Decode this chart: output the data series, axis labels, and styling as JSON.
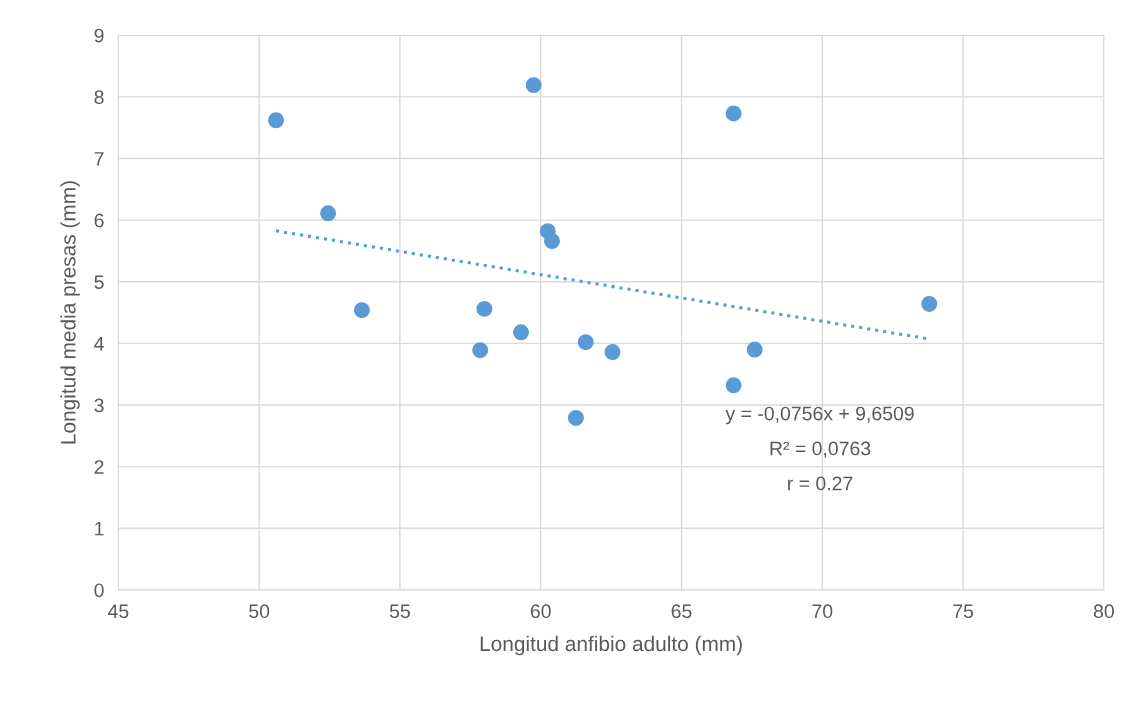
{
  "chart_data": {
    "type": "scatter",
    "xlabel": "Longitud anfibio adulto (mm)",
    "ylabel": "Longitud media presas (mm)",
    "xlim": [
      45,
      80
    ],
    "xticks": [
      45,
      50,
      55,
      60,
      65,
      70,
      75,
      80
    ],
    "ylim": [
      0,
      9
    ],
    "yticks": [
      0,
      1,
      2,
      3,
      4,
      5,
      6,
      7,
      8,
      9
    ],
    "grid": true,
    "marker": "circle",
    "series": [
      {
        "color": "#5b9bd5",
        "x": [
          50.6,
          52.45,
          53.65,
          57.85,
          58.0,
          59.3,
          59.75,
          60.25,
          60.4,
          61.25,
          61.6,
          62.55,
          66.85,
          66.85,
          67.6,
          73.8
        ],
        "values": [
          7.62,
          6.11,
          4.54,
          3.89,
          4.56,
          4.18,
          8.19,
          5.82,
          5.66,
          2.79,
          4.02,
          3.86,
          7.73,
          3.32,
          3.9,
          4.64
        ]
      },
      {
        "type": "line",
        "color": "#5b9bd5",
        "line_style": "dotted",
        "marker": "none",
        "x": [
          50.6,
          73.8
        ],
        "values": [
          5.826,
          4.072
        ]
      }
    ],
    "annotations": [
      "y = -0,0756x + 9,6509",
      "R² = 0,0763",
      "r = 0.27"
    ]
  }
}
